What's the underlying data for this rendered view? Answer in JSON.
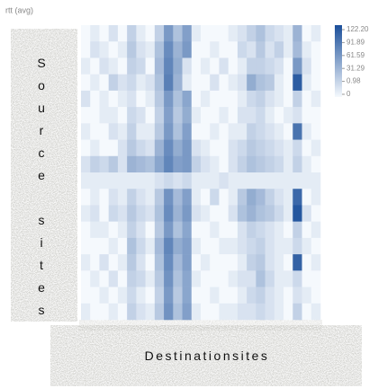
{
  "chart_data": {
    "type": "heatmap",
    "title": "rtt (avg)",
    "xlabel": "Destinationsites",
    "ylabel": "Source sites",
    "zlim": [
      0,
      122.2
    ],
    "colorbar_ticks": [
      {
        "value": 122.2,
        "label": "122.20"
      },
      91.89,
      61.59,
      31.29,
      0.98,
      0
    ],
    "values": [
      [
        0,
        5,
        0,
        10,
        0,
        20,
        5,
        0,
        20,
        60,
        30,
        55,
        5,
        0,
        0,
        0,
        5,
        10,
        20,
        30,
        15,
        10,
        5,
        40,
        0,
        5
      ],
      [
        0,
        10,
        5,
        0,
        5,
        25,
        10,
        5,
        30,
        70,
        40,
        60,
        0,
        0,
        5,
        0,
        0,
        15,
        10,
        25,
        10,
        20,
        5,
        35,
        5,
        0
      ],
      [
        5,
        0,
        10,
        5,
        0,
        20,
        15,
        0,
        35,
        75,
        45,
        10,
        0,
        5,
        0,
        10,
        0,
        5,
        20,
        20,
        15,
        10,
        0,
        60,
        10,
        0
      ],
      [
        0,
        5,
        0,
        20,
        10,
        15,
        5,
        10,
        30,
        80,
        40,
        5,
        0,
        0,
        10,
        0,
        5,
        10,
        45,
        30,
        25,
        5,
        0,
        110,
        5,
        0
      ],
      [
        10,
        0,
        5,
        0,
        5,
        10,
        0,
        5,
        25,
        60,
        30,
        50,
        0,
        5,
        0,
        0,
        0,
        5,
        15,
        20,
        10,
        5,
        0,
        20,
        0,
        5
      ],
      [
        0,
        0,
        5,
        5,
        0,
        15,
        10,
        0,
        20,
        55,
        25,
        45,
        5,
        0,
        0,
        5,
        0,
        10,
        10,
        15,
        5,
        0,
        5,
        10,
        0,
        0
      ],
      [
        5,
        0,
        0,
        10,
        5,
        20,
        5,
        5,
        25,
        60,
        30,
        55,
        0,
        0,
        5,
        0,
        5,
        5,
        20,
        15,
        10,
        5,
        0,
        90,
        5,
        0
      ],
      [
        0,
        5,
        0,
        0,
        10,
        25,
        15,
        10,
        40,
        70,
        45,
        60,
        10,
        5,
        0,
        0,
        10,
        15,
        25,
        20,
        15,
        10,
        5,
        15,
        0,
        5
      ],
      [
        10,
        20,
        15,
        25,
        10,
        40,
        35,
        30,
        50,
        75,
        55,
        60,
        20,
        10,
        5,
        0,
        10,
        20,
        30,
        25,
        20,
        15,
        5,
        20,
        5,
        0
      ],
      [
        5,
        5,
        5,
        5,
        5,
        5,
        5,
        5,
        10,
        15,
        10,
        15,
        5,
        5,
        5,
        10,
        5,
        5,
        5,
        5,
        5,
        5,
        5,
        5,
        5,
        5
      ],
      [
        0,
        5,
        0,
        10,
        5,
        20,
        10,
        5,
        25,
        65,
        35,
        55,
        5,
        0,
        15,
        0,
        5,
        25,
        45,
        35,
        20,
        10,
        5,
        100,
        0,
        5
      ],
      [
        5,
        10,
        0,
        15,
        10,
        25,
        15,
        10,
        30,
        70,
        40,
        60,
        10,
        5,
        0,
        0,
        10,
        30,
        40,
        30,
        25,
        15,
        5,
        115,
        10,
        0
      ],
      [
        0,
        5,
        5,
        0,
        5,
        20,
        10,
        0,
        25,
        60,
        30,
        50,
        0,
        0,
        5,
        0,
        0,
        10,
        20,
        15,
        10,
        5,
        0,
        20,
        0,
        5
      ],
      [
        0,
        0,
        0,
        5,
        0,
        30,
        15,
        5,
        35,
        75,
        45,
        55,
        5,
        0,
        0,
        5,
        5,
        10,
        15,
        20,
        10,
        5,
        5,
        15,
        5,
        0
      ],
      [
        5,
        0,
        10,
        0,
        5,
        25,
        10,
        0,
        30,
        70,
        35,
        55,
        0,
        5,
        0,
        0,
        0,
        5,
        20,
        25,
        10,
        5,
        0,
        105,
        0,
        5
      ],
      [
        0,
        5,
        0,
        10,
        0,
        20,
        15,
        5,
        25,
        65,
        30,
        50,
        5,
        0,
        0,
        0,
        5,
        10,
        10,
        30,
        15,
        5,
        5,
        15,
        0,
        0
      ],
      [
        0,
        0,
        5,
        0,
        5,
        15,
        5,
        0,
        20,
        60,
        25,
        50,
        0,
        0,
        5,
        0,
        0,
        5,
        15,
        20,
        10,
        5,
        0,
        10,
        5,
        0
      ],
      [
        5,
        0,
        0,
        5,
        0,
        20,
        10,
        5,
        25,
        65,
        30,
        55,
        5,
        0,
        0,
        5,
        5,
        10,
        10,
        15,
        10,
        5,
        0,
        20,
        0,
        5
      ]
    ]
  }
}
